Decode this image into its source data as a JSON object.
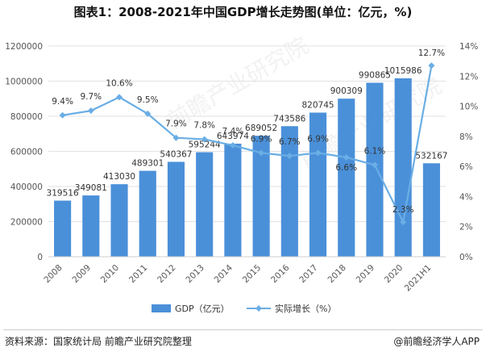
{
  "title": "图表1：2008-2021年中国GDP增长走势图(单位：亿元，%)",
  "footer": {
    "source": "资料来源：国家统计局 前瞻产业研究院整理",
    "brand": "@前瞻经济学人APP"
  },
  "watermark": "前瞻产业研究院",
  "colors": {
    "bar": "#4a90d9",
    "line": "#6aaee5",
    "grid": "#e2e2e2",
    "text": "#555555"
  },
  "chart_data": {
    "type": "bar",
    "categories": [
      "2008",
      "2009",
      "2010",
      "2011",
      "2012",
      "2013",
      "2014",
      "2015",
      "2016",
      "2017",
      "2018",
      "2019",
      "2020",
      "2021H1"
    ],
    "series": [
      {
        "name": "GDP（亿元）",
        "type": "bar",
        "axis": "left",
        "values": [
          319516,
          349081,
          413030,
          489301,
          540367,
          595244,
          643974,
          689052,
          743586,
          820745,
          900309,
          990865,
          1015986,
          532167
        ],
        "labels": [
          "319516",
          "349081",
          "413030",
          "489301",
          "540367",
          "595244",
          "643974",
          "689052",
          "743586",
          "820745",
          "900309",
          "990865",
          "1015986",
          "532167"
        ]
      },
      {
        "name": "实际增长（%）",
        "type": "line",
        "axis": "right",
        "values": [
          9.4,
          9.7,
          10.6,
          9.5,
          7.9,
          7.8,
          7.4,
          6.9,
          6.7,
          6.9,
          6.6,
          6.1,
          2.3,
          12.7
        ],
        "labels": [
          "9.4%",
          "9.7%",
          "10.6%",
          "9.5%",
          "7.9%",
          "7.8%",
          "7.4%",
          "6.9%",
          "6.7%",
          "6.9%",
          "6.6%",
          "6.1%",
          "2.3%",
          "12.7%"
        ]
      }
    ],
    "y_left": {
      "ylim": [
        0,
        1200000
      ],
      "ticks": [
        "0",
        "200000",
        "400000",
        "600000",
        "800000",
        "1000000",
        "1200000"
      ]
    },
    "y_right": {
      "ylim": [
        0,
        14
      ],
      "ticks": [
        "0%",
        "2%",
        "4%",
        "6%",
        "8%",
        "10%",
        "12%",
        "14%"
      ]
    },
    "grid": true,
    "legend": "bottom"
  }
}
